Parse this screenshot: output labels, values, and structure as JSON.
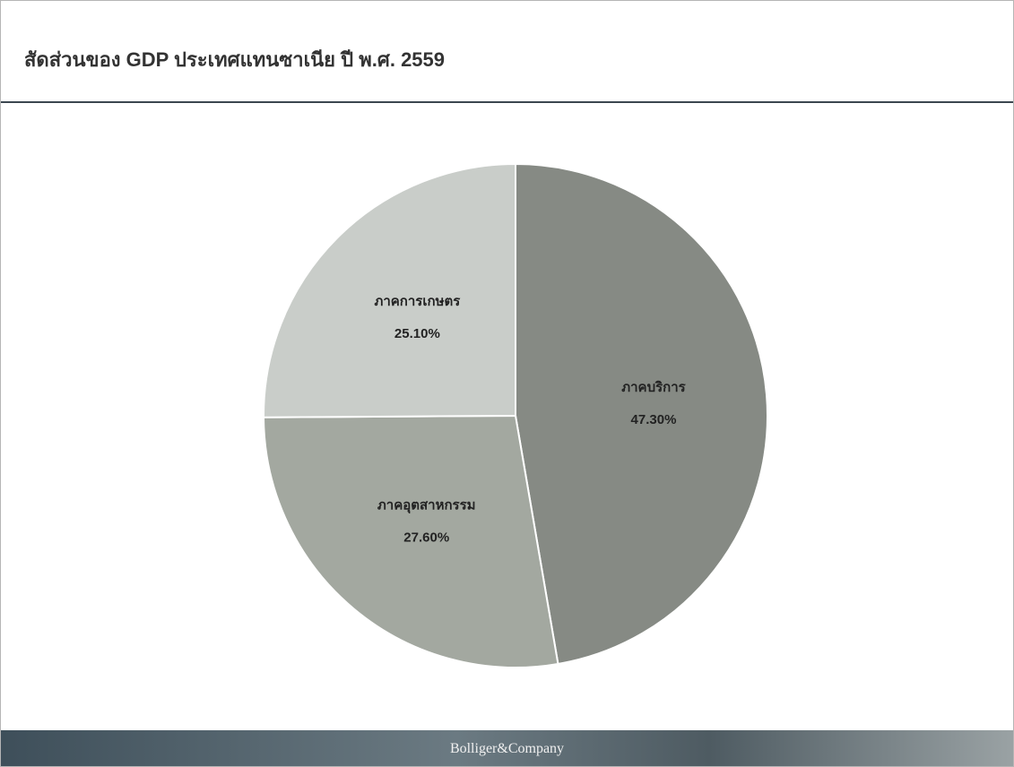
{
  "chart_data": {
    "type": "pie",
    "title": "สัดส่วนของ GDP ประเทศแทนซาเนีย ปี พ.ศ. 2559",
    "categories": [
      "ภาคบริการ",
      "ภาคอุตสาหกรรม",
      "ภาคการเกษตร"
    ],
    "values": [
      47.3,
      27.6,
      25.1
    ],
    "value_labels": [
      "47.30%",
      "27.60%",
      "25.10%"
    ],
    "colors": [
      "#868a84",
      "#a3a8a0",
      "#c9cdc9"
    ]
  },
  "footer": "Bolliger&Company"
}
